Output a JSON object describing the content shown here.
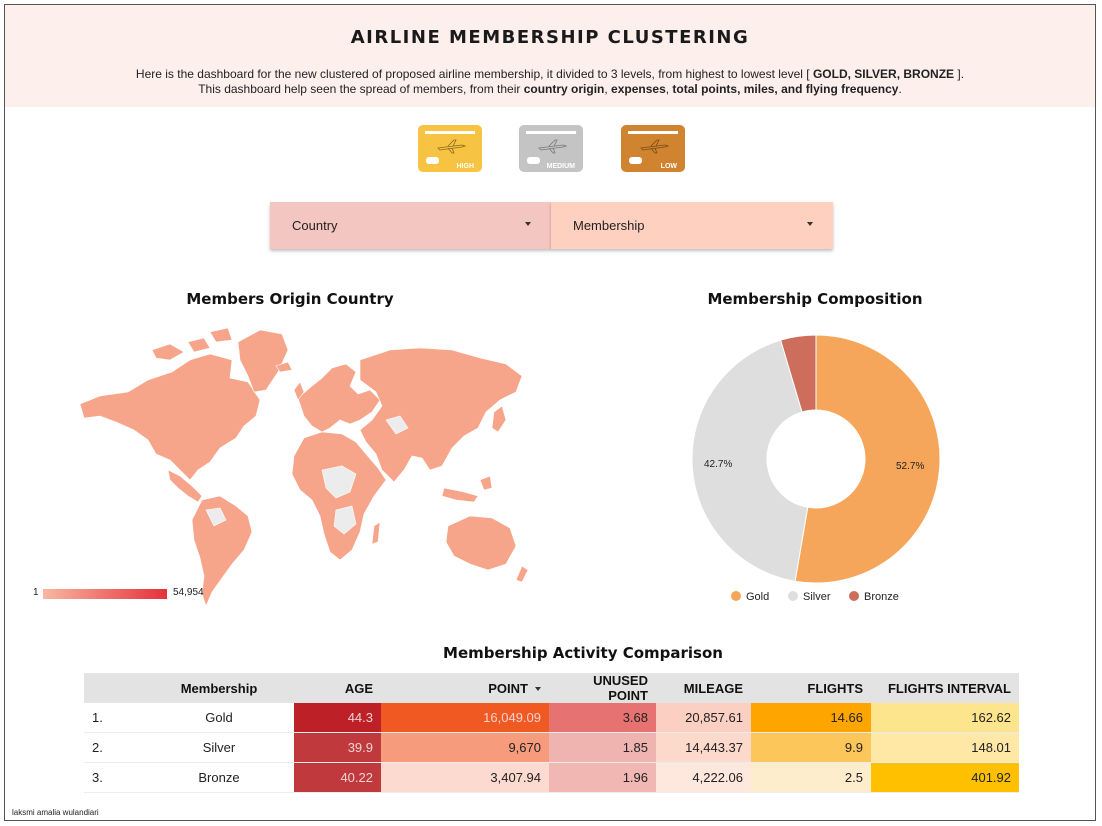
{
  "header": {
    "title": "AIRLINE MEMBERSHIP CLUSTERING",
    "line1_a": "Here is the dashboard for the new clustered of proposed airline membership, it divided to 3 levels, from highest to lowest level [",
    "line1_b": " GOLD, SILVER, BRONZE ",
    "line1_c": "].",
    "line2_a": "This dashboard help seen the spread of members, from their ",
    "line2_b": "country origin",
    "line2_c": ", ",
    "line2_d": "expenses",
    "line2_e": ", ",
    "line2_f": "total points, miles, and flying frequency",
    "line2_g": "."
  },
  "cards": [
    {
      "label": "HIGH",
      "color": "#f6c343"
    },
    {
      "label": "MEDIUM",
      "color": "#c4c4c4"
    },
    {
      "label": "LOW",
      "color": "#d08430"
    }
  ],
  "filters": {
    "country": {
      "label": "Country",
      "color": "#f4c6c1"
    },
    "membership": {
      "label": "Membership",
      "color": "#fdd0bf"
    }
  },
  "map": {
    "title": "Members Origin Country",
    "legend_min": "1",
    "legend_max": "54,954",
    "fill_color": "#f7a58a"
  },
  "donut": {
    "title": "Membership Composition",
    "legend": [
      {
        "label": "Gold",
        "color": "#f6a65a"
      },
      {
        "label": "Silver",
        "color": "#dedede"
      },
      {
        "label": "Bronze",
        "color": "#cd6d5b"
      }
    ]
  },
  "chart_data": {
    "type": "pie",
    "title": "Membership Composition",
    "categories": [
      "Gold",
      "Silver",
      "Bronze"
    ],
    "values": [
      52.7,
      42.7,
      4.6
    ],
    "labels": [
      "52.7%",
      "42.7%",
      ""
    ]
  },
  "table": {
    "title": "Membership Activity Comparison",
    "headers": [
      "Membership",
      "AGE",
      "POINT",
      "UNUSED POINT",
      "MILEAGE",
      "FLIGHTS",
      "FLIGHTS INTERVAL"
    ],
    "rows": [
      {
        "idx": "1.",
        "membership": "Gold",
        "age": "44.3",
        "point": "16,049.09",
        "unused": "3.68",
        "mileage": "20,857.61",
        "flights": "14.66",
        "interval": "162.62"
      },
      {
        "idx": "2.",
        "membership": "Silver",
        "age": "39.9",
        "point": "9,670",
        "unused": "1.85",
        "mileage": "14,443.37",
        "flights": "9.9",
        "interval": "148.01"
      },
      {
        "idx": "3.",
        "membership": "Bronze",
        "age": "40.22",
        "point": "3,407.94",
        "unused": "1.96",
        "mileage": "4,222.06",
        "flights": "2.5",
        "interval": "401.92"
      }
    ],
    "cell_colors": [
      [
        "#bd2127",
        "#f05a22",
        "#e77272",
        "#fbd0c3",
        "#ffa500",
        "#fde58e"
      ],
      [
        "#c0393c",
        "#f69b7b",
        "#f0b4b0",
        "#fcd9cb",
        "#fdc65a",
        "#ffe8a6"
      ],
      [
        "#c0393c",
        "#fddad0",
        "#f1b7b3",
        "#fee7dd",
        "#feedcc",
        "#ffc000"
      ]
    ]
  },
  "footer": "laksmi amalia wulandiari"
}
